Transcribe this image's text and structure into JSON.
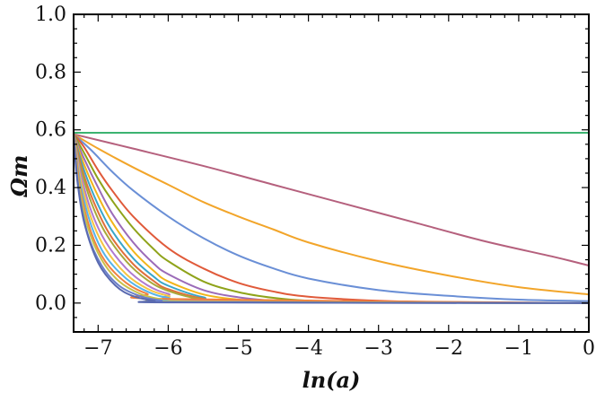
{
  "chart_data": {
    "type": "line",
    "title": "",
    "xlabel": "ln(a)",
    "ylabel": "Ωm",
    "xlim": [
      -7.35,
      0
    ],
    "ylim": [
      -0.1,
      1.0
    ],
    "x_ticks": [
      -7,
      -6,
      -5,
      -4,
      -3,
      -2,
      -1,
      0
    ],
    "x_tick_labels": [
      "−7",
      "−6",
      "−5",
      "−4",
      "−3",
      "−2",
      "−1",
      "0"
    ],
    "y_ticks": [
      0.0,
      0.2,
      0.4,
      0.6,
      0.8,
      1.0
    ],
    "y_tick_labels": [
      "0.0",
      "0.2",
      "0.4",
      "0.6",
      "0.8",
      "1.0"
    ],
    "grid": false,
    "legend": "none",
    "series": [
      {
        "color": "#3cb371",
        "x": [
          -7.35,
          -6,
          -4,
          -2,
          0
        ],
        "y": [
          0.59,
          0.59,
          0.59,
          0.59,
          0.59
        ]
      },
      {
        "color": "#b5607d",
        "x": [
          -7.35,
          -6.5,
          -5.5,
          -4.5,
          -3.5,
          -2.5,
          -1.5,
          -0.5,
          0
        ],
        "y": [
          0.585,
          0.535,
          0.475,
          0.41,
          0.345,
          0.28,
          0.215,
          0.16,
          0.13
        ]
      },
      {
        "color": "#f2a52a",
        "x": [
          -7.35,
          -7.0,
          -6.5,
          -6.0,
          -5.5,
          -5.0,
          -4.5,
          -4.0,
          -3.0,
          -2.0,
          -1.0,
          0
        ],
        "y": [
          0.585,
          0.535,
          0.47,
          0.41,
          0.35,
          0.3,
          0.255,
          0.21,
          0.145,
          0.095,
          0.055,
          0.03
        ]
      },
      {
        "color": "#6a8fd6",
        "x": [
          -7.35,
          -7.1,
          -6.8,
          -6.5,
          -6.0,
          -5.5,
          -5.0,
          -4.5,
          -4.0,
          -3.0,
          -2.0,
          -1.0,
          0
        ],
        "y": [
          0.585,
          0.53,
          0.455,
          0.39,
          0.3,
          0.225,
          0.165,
          0.12,
          0.085,
          0.045,
          0.025,
          0.012,
          0.007
        ]
      },
      {
        "color": "#e05a3a",
        "x": [
          -7.35,
          -7.2,
          -7.0,
          -6.8,
          -6.5,
          -6.0,
          -5.5,
          -5.0,
          -4.5,
          -4.0,
          -3.0,
          -2.0,
          0
        ],
        "y": [
          0.585,
          0.54,
          0.46,
          0.39,
          0.3,
          0.19,
          0.12,
          0.07,
          0.04,
          0.022,
          0.008,
          0.003,
          0.0
        ]
      },
      {
        "color": "#8fa31a",
        "x": [
          -7.35,
          -7.2,
          -7.0,
          -6.8,
          -6.5,
          -6.2,
          -6.0,
          -5.5,
          -5.0,
          -4.5,
          -4.0,
          -3.0,
          0
        ],
        "y": [
          0.585,
          0.52,
          0.43,
          0.355,
          0.26,
          0.185,
          0.145,
          0.075,
          0.038,
          0.018,
          0.008,
          0.002,
          0.0
        ]
      },
      {
        "color": "#9b6bb8",
        "x": [
          -7.35,
          -7.2,
          -7.0,
          -6.8,
          -6.5,
          -6.2,
          -6.0,
          -5.5,
          -5.0,
          -4.5,
          -4.0,
          0
        ],
        "y": [
          0.585,
          0.5,
          0.4,
          0.31,
          0.21,
          0.135,
          0.1,
          0.045,
          0.02,
          0.008,
          0.003,
          0.0
        ]
      },
      {
        "color": "#f2b51a",
        "x": [
          -7.35,
          -7.2,
          -7.0,
          -6.8,
          -6.5,
          -6.2,
          -6.0,
          -5.5,
          -5.0,
          -4.5,
          0
        ],
        "y": [
          0.585,
          0.48,
          0.37,
          0.28,
          0.18,
          0.11,
          0.075,
          0.03,
          0.012,
          0.004,
          0.0
        ]
      },
      {
        "color": "#3aa6c8",
        "x": [
          -7.35,
          -7.2,
          -7.0,
          -6.8,
          -6.5,
          -6.2,
          -6.0,
          -5.5,
          -5.0,
          0
        ],
        "y": [
          0.585,
          0.46,
          0.34,
          0.25,
          0.155,
          0.09,
          0.06,
          0.02,
          0.007,
          0.0
        ]
      },
      {
        "color": "#e0703a",
        "x": [
          -7.35,
          -7.2,
          -7.0,
          -6.8,
          -6.5,
          -6.2,
          -6.0,
          -5.5,
          -5.0,
          0
        ],
        "y": [
          0.585,
          0.44,
          0.315,
          0.225,
          0.135,
          0.075,
          0.048,
          0.015,
          0.005,
          0.0
        ]
      },
      {
        "color": "#a8a83a",
        "x": [
          -7.35,
          -7.25,
          -7.1,
          -6.9,
          -6.6,
          -6.3,
          -6.0,
          -5.5,
          -5.0,
          0
        ],
        "y": [
          0.585,
          0.47,
          0.35,
          0.245,
          0.145,
          0.08,
          0.042,
          0.012,
          0.004,
          0.0
        ]
      },
      {
        "color": "#b07ad0",
        "x": [
          -7.35,
          -7.25,
          -7.1,
          -6.9,
          -6.6,
          -6.3,
          -6.0,
          -5.5,
          0
        ],
        "y": [
          0.585,
          0.45,
          0.32,
          0.215,
          0.12,
          0.062,
          0.032,
          0.008,
          0.0
        ]
      },
      {
        "color": "#f5c542",
        "x": [
          -7.35,
          -7.25,
          -7.1,
          -6.9,
          -6.6,
          -6.3,
          -6.0,
          -5.5,
          0
        ],
        "y": [
          0.585,
          0.43,
          0.295,
          0.19,
          0.1,
          0.05,
          0.025,
          0.005,
          0.0
        ]
      },
      {
        "color": "#56b4e9",
        "x": [
          -7.35,
          -7.25,
          -7.1,
          -6.9,
          -6.6,
          -6.3,
          -6.0,
          -5.5,
          0
        ],
        "y": [
          0.585,
          0.41,
          0.27,
          0.165,
          0.085,
          0.04,
          0.018,
          0.004,
          0.0
        ]
      },
      {
        "color": "#f08040",
        "x": [
          -7.35,
          -7.25,
          -7.1,
          -6.9,
          -6.6,
          -6.3,
          -6.0,
          0
        ],
        "y": [
          0.585,
          0.39,
          0.245,
          0.145,
          0.07,
          0.032,
          0.014,
          0.0
        ]
      },
      {
        "color": "#c8c04a",
        "x": [
          -7.35,
          -7.28,
          -7.15,
          -6.95,
          -6.7,
          -6.4,
          -6.1,
          -5.8,
          0
        ],
        "y": [
          0.585,
          0.42,
          0.265,
          0.15,
          0.075,
          0.032,
          0.013,
          0.005,
          0.0
        ]
      },
      {
        "color": "#6a7fc8",
        "x": [
          -7.35,
          -7.28,
          -7.15,
          -6.95,
          -6.7,
          -6.4,
          -6.1,
          -5.8,
          0
        ],
        "y": [
          0.585,
          0.4,
          0.24,
          0.13,
          0.06,
          0.024,
          0.009,
          0.003,
          0.0
        ]
      },
      {
        "color": "#5a6ab0",
        "x": [
          -7.35,
          -7.3,
          -7.2,
          -7.0,
          -6.75,
          -6.5,
          -6.2,
          -5.9,
          0
        ],
        "y": [
          0.585,
          0.43,
          0.28,
          0.14,
          0.06,
          0.024,
          0.008,
          0.002,
          0.0
        ]
      }
    ]
  }
}
